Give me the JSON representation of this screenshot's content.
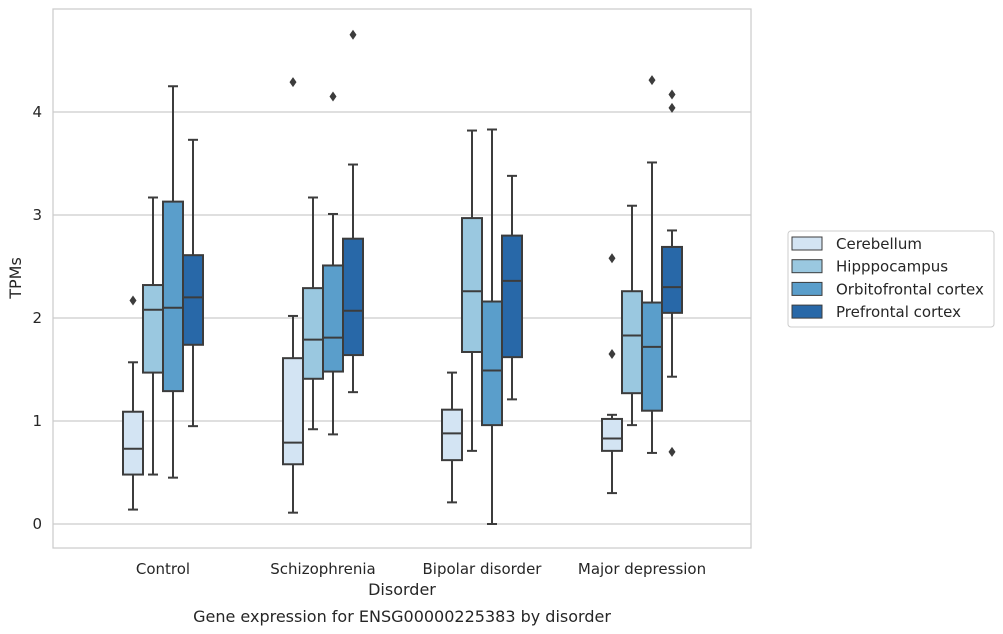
{
  "chart_data": {
    "type": "box",
    "title": "",
    "caption": "Gene expression for ENSG00000225383 by disorder",
    "xlabel": "Disorder",
    "ylabel": "TPMs",
    "ylim": [
      -0.23,
      4.98
    ],
    "yticks": [
      0,
      1,
      2,
      3,
      4
    ],
    "grid": true,
    "legend_position": "right",
    "categories": [
      "Control",
      "Schizophrenia",
      "Bipolar disorder",
      "Major depression"
    ],
    "series": [
      {
        "name": "Cerebellum",
        "color": "#d3e4f3",
        "boxes": [
          {
            "whislo": 0.14,
            "q1": 0.48,
            "med": 0.73,
            "q3": 1.09,
            "whishi": 1.57,
            "fliers": [
              2.17
            ]
          },
          {
            "whislo": 0.11,
            "q1": 0.58,
            "med": 0.79,
            "q3": 1.61,
            "whishi": 2.02,
            "fliers": [
              4.29
            ]
          },
          {
            "whislo": 0.21,
            "q1": 0.62,
            "med": 0.88,
            "q3": 1.11,
            "whishi": 1.47,
            "fliers": []
          },
          {
            "whislo": 0.3,
            "q1": 0.71,
            "med": 0.83,
            "q3": 1.02,
            "whishi": 1.06,
            "fliers": [
              2.58,
              1.65
            ]
          }
        ]
      },
      {
        "name": "Hipppocampus",
        "color": "#9ac8e0",
        "boxes": [
          {
            "whislo": 0.48,
            "q1": 1.47,
            "med": 2.08,
            "q3": 2.32,
            "whishi": 3.17,
            "fliers": []
          },
          {
            "whislo": 0.92,
            "q1": 1.41,
            "med": 1.79,
            "q3": 2.29,
            "whishi": 3.17,
            "fliers": []
          },
          {
            "whislo": 0.71,
            "q1": 1.67,
            "med": 2.26,
            "q3": 2.97,
            "whishi": 3.82,
            "fliers": []
          },
          {
            "whislo": 0.96,
            "q1": 1.27,
            "med": 1.83,
            "q3": 2.26,
            "whishi": 3.09,
            "fliers": []
          }
        ]
      },
      {
        "name": "Orbitofrontal cortex",
        "color": "#5a9ecb",
        "boxes": [
          {
            "whislo": 0.45,
            "q1": 1.29,
            "med": 2.1,
            "q3": 3.13,
            "whishi": 4.25,
            "fliers": []
          },
          {
            "whislo": 0.87,
            "q1": 1.48,
            "med": 1.81,
            "q3": 2.51,
            "whishi": 3.01,
            "fliers": [
              4.15
            ]
          },
          {
            "whislo": 0.0,
            "q1": 0.96,
            "med": 1.49,
            "q3": 2.16,
            "whishi": 3.83,
            "fliers": []
          },
          {
            "whislo": 0.69,
            "q1": 1.1,
            "med": 1.72,
            "q3": 2.15,
            "whishi": 3.51,
            "fliers": [
              4.31
            ]
          }
        ]
      },
      {
        "name": "Prefrontal cortex",
        "color": "#2868a8",
        "boxes": [
          {
            "whislo": 0.95,
            "q1": 1.74,
            "med": 2.2,
            "q3": 2.61,
            "whishi": 3.73,
            "fliers": []
          },
          {
            "whislo": 1.28,
            "q1": 1.64,
            "med": 2.07,
            "q3": 2.77,
            "whishi": 3.49,
            "fliers": [
              4.75
            ]
          },
          {
            "whislo": 1.21,
            "q1": 1.62,
            "med": 2.36,
            "q3": 2.8,
            "whishi": 3.38,
            "fliers": []
          },
          {
            "whislo": 1.43,
            "q1": 2.05,
            "med": 2.3,
            "q3": 2.69,
            "whishi": 2.85,
            "fliers": [
              4.17,
              4.04,
              0.7
            ]
          }
        ]
      }
    ]
  }
}
